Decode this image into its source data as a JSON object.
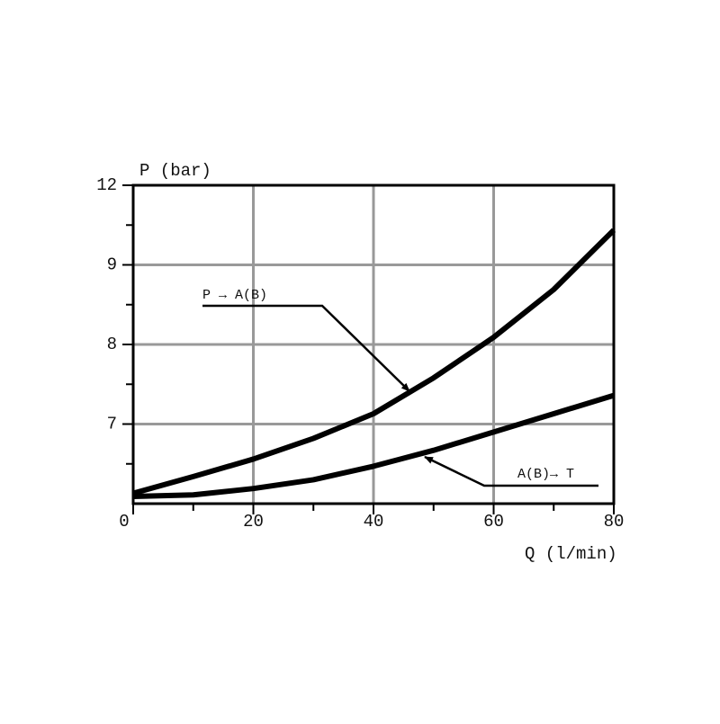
{
  "chart_data": {
    "type": "line",
    "x_label": "Q (l/min)",
    "y_label": "P (bar)",
    "x": [
      0,
      10,
      20,
      30,
      40,
      50,
      60,
      70,
      80
    ],
    "series": [
      {
        "name": "P → A(B)",
        "color": "#000000",
        "values": [
          6.13,
          6.34,
          6.56,
          6.82,
          7.13,
          7.58,
          8.09,
          8.69,
          10.31
        ]
      },
      {
        "name": "A(B)→ T",
        "color": "#000000",
        "values": [
          6.09,
          6.11,
          6.19,
          6.3,
          6.47,
          6.67,
          6.9,
          7.13,
          7.36
        ]
      }
    ],
    "xlim": [
      0,
      80
    ],
    "xticks": [
      0,
      20,
      40,
      60,
      80
    ],
    "ylim": [
      6,
      12
    ],
    "yticks": [
      7,
      8,
      9,
      12
    ],
    "grid": true
  }
}
